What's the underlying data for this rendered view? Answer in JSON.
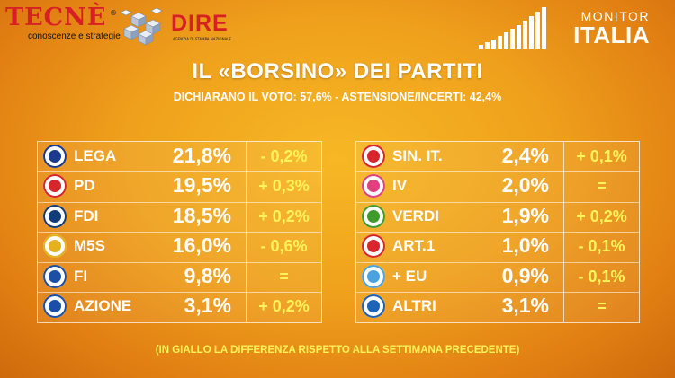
{
  "header": {
    "tecne_name": "TECNÈ",
    "tecne_reg": "®",
    "tecne_sub": "conoscenze e strategie",
    "dire_name": "DIRE",
    "dire_sub": "AGENZIA DI STAMPA NAZIONALE",
    "monitor_top": "MONITOR",
    "monitor_big": "ITALIA"
  },
  "title": "IL «BORSINO» DEI PARTITI",
  "subtitle": "DICHIARANO IL VOTO: 57,6% - ASTENSIONE/INCERTI: 42,4%",
  "footnote": "(IN GIALLO LA DIFFERENZA RISPETTO ALLA SETTIMANA PRECEDENTE)",
  "chart_data": {
    "type": "table",
    "title": "IL «BORSINO» DEI PARTITI",
    "columns": [
      "party",
      "share",
      "change"
    ],
    "left_table": [
      {
        "party": "LEGA",
        "value": 21.8,
        "value_label": "21,8%",
        "change": -0.2,
        "change_label": "- 0,2%",
        "logo_color": "#1b3a8c",
        "logo_icon": "lega-logo-icon"
      },
      {
        "party": "PD",
        "value": 19.5,
        "value_label": "19,5%",
        "change": 0.3,
        "change_label": "+ 0,3%",
        "logo_color": "#d6262b",
        "logo_icon": "pd-logo-icon"
      },
      {
        "party": "FDI",
        "value": 18.5,
        "value_label": "18,5%",
        "change": 0.2,
        "change_label": "+ 0,2%",
        "logo_color": "#123b7a",
        "logo_icon": "fdi-logo-icon"
      },
      {
        "party": "M5S",
        "value": 16.0,
        "value_label": "16,0%",
        "change": -0.6,
        "change_label": "- 0,6%",
        "logo_color": "#e3b21c",
        "logo_icon": "m5s-logo-icon"
      },
      {
        "party": "FI",
        "value": 9.8,
        "value_label": "9,8%",
        "change": 0,
        "change_label": "=",
        "logo_color": "#1c4fa3",
        "logo_icon": "fi-logo-icon"
      },
      {
        "party": "AZIONE",
        "value": 3.1,
        "value_label": "3,1%",
        "change": 0.2,
        "change_label": "+ 0,2%",
        "logo_color": "#1a4fa8",
        "logo_icon": "azione-logo-icon"
      }
    ],
    "right_table": [
      {
        "party": "SIN. IT.",
        "value": 2.4,
        "value_label": "2,4%",
        "change": 0.1,
        "change_label": "+ 0,1%",
        "logo_color": "#d6262b",
        "logo_icon": "sinistra-italiana-logo-icon"
      },
      {
        "party": "IV",
        "value": 2.0,
        "value_label": "2,0%",
        "change": 0,
        "change_label": "=",
        "logo_color": "#e0407e",
        "logo_icon": "italia-viva-logo-icon"
      },
      {
        "party": "VERDI",
        "value": 1.9,
        "value_label": "1,9%",
        "change": 0.2,
        "change_label": "+ 0,2%",
        "logo_color": "#3f9a2c",
        "logo_icon": "verdi-logo-icon"
      },
      {
        "party": "ART.1",
        "value": 1.0,
        "value_label": "1,0%",
        "change": -0.1,
        "change_label": "- 0,1%",
        "logo_color": "#d6262b",
        "logo_icon": "articolo1-logo-icon"
      },
      {
        "party": "+ EU",
        "value": 0.9,
        "value_label": "0,9%",
        "change": -0.1,
        "change_label": "- 0,1%",
        "logo_color": "#4aa3df",
        "logo_icon": "piu-europa-logo-icon"
      },
      {
        "party": "ALTRI",
        "value": 3.1,
        "value_label": "3,1%",
        "change": 0,
        "change_label": "=",
        "logo_color": "#1d63b8",
        "logo_icon": "altri-logo-icon"
      }
    ]
  },
  "colors": {
    "accent_yellow": "#fff35a",
    "background": "#efa01c",
    "text": "#ffffff",
    "brand_red": "#d71f26"
  }
}
